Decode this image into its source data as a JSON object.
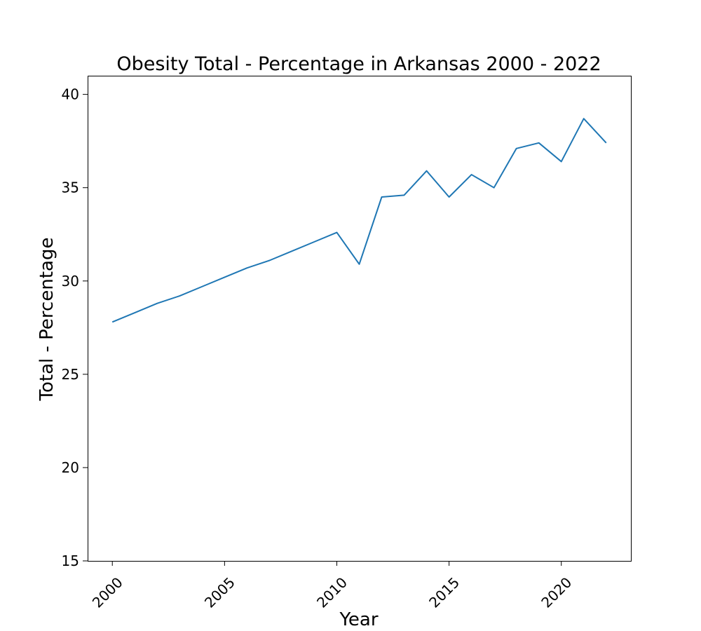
{
  "chart_data": {
    "type": "line",
    "title": "Obesity Total - Percentage in Arkansas 2000 - 2022",
    "xlabel": "Year",
    "ylabel": "Total - Percentage",
    "xlim": [
      1998.9,
      2023.1
    ],
    "ylim": [
      15,
      41
    ],
    "xticks": [
      "2000",
      "2005",
      "2010",
      "2015",
      "2020"
    ],
    "yticks": [
      "15",
      "20",
      "25",
      "30",
      "35",
      "40"
    ],
    "grid": false,
    "legend": "none",
    "series": [
      {
        "color": "#1f77b4",
        "x": [
          2000,
          2001,
          2002,
          2003,
          2004,
          2005,
          2006,
          2007,
          2008,
          2009,
          2010,
          2011,
          2012,
          2013,
          2014,
          2015,
          2016,
          2017,
          2018,
          2019,
          2020,
          2021,
          2022
        ],
        "y": [
          27.8,
          28.3,
          28.8,
          29.2,
          29.7,
          30.2,
          30.7,
          31.1,
          31.6,
          32.1,
          32.6,
          30.9,
          34.5,
          34.6,
          35.9,
          34.5,
          35.7,
          35.0,
          37.1,
          37.4,
          36.4,
          38.7,
          37.4
        ]
      }
    ]
  }
}
